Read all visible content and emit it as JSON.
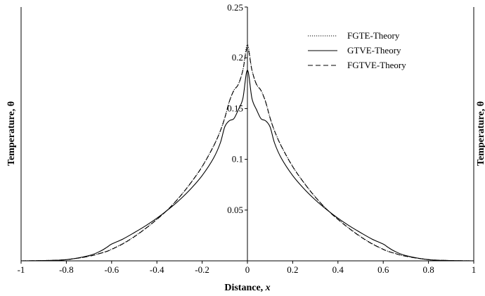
{
  "chart_data": {
    "type": "line",
    "title": "",
    "xlabel_text": "Distance, ",
    "xlabel_var": "x",
    "ylabel_left": "Temperature, θ",
    "ylabel_right": "Temperature, θ",
    "xlim": [
      -1,
      1
    ],
    "ylim": [
      0,
      0.25
    ],
    "x_ticks": [
      "-1",
      "-0.8",
      "-0.6",
      "-0.4",
      "-0.2",
      "0",
      "0.2",
      "0.4",
      "0.6",
      "0.8",
      "1"
    ],
    "y_ticks": [
      "0.05",
      "0.1",
      "0.15",
      "0.2",
      "0.25"
    ],
    "grid": false,
    "legend_position": "top-right",
    "x": [
      -1,
      -0.9,
      -0.8,
      -0.7,
      -0.65,
      -0.62,
      -0.6,
      -0.55,
      -0.5,
      -0.45,
      -0.4,
      -0.35,
      -0.3,
      -0.25,
      -0.2,
      -0.15,
      -0.12,
      -0.1,
      -0.08,
      -0.06,
      -0.04,
      -0.02,
      0,
      0.02,
      0.04,
      0.06,
      0.08,
      0.1,
      0.12,
      0.15,
      0.2,
      0.25,
      0.3,
      0.35,
      0.4,
      0.45,
      0.5,
      0.55,
      0.6,
      0.62,
      0.65,
      0.7,
      0.8,
      0.9,
      1
    ],
    "series": [
      {
        "name": "FGTE-Theory",
        "dash": "1.2,1.8",
        "values": [
          0,
          0.0003,
          0.0012,
          0.0045,
          0.0075,
          0.0095,
          0.0115,
          0.017,
          0.024,
          0.032,
          0.041,
          0.051,
          0.063,
          0.077,
          0.093,
          0.113,
          0.128,
          0.141,
          0.157,
          0.168,
          0.174,
          0.188,
          0.213,
          0.188,
          0.174,
          0.168,
          0.157,
          0.141,
          0.128,
          0.113,
          0.093,
          0.077,
          0.063,
          0.051,
          0.041,
          0.032,
          0.024,
          0.017,
          0.0115,
          0.0095,
          0.0075,
          0.0045,
          0.0012,
          0.0003,
          0
        ]
      },
      {
        "name": "GTVE-Theory",
        "dash": "",
        "values": [
          0,
          0.0003,
          0.0012,
          0.0052,
          0.0095,
          0.0135,
          0.0165,
          0.0215,
          0.0278,
          0.0345,
          0.042,
          0.0505,
          0.06,
          0.071,
          0.084,
          0.101,
          0.116,
          0.132,
          0.138,
          0.14,
          0.149,
          0.16,
          0.188,
          0.16,
          0.149,
          0.14,
          0.138,
          0.132,
          0.116,
          0.101,
          0.084,
          0.071,
          0.06,
          0.0505,
          0.042,
          0.0345,
          0.0278,
          0.0215,
          0.0165,
          0.0135,
          0.0095,
          0.0052,
          0.0012,
          0.0003,
          0
        ]
      },
      {
        "name": "FGTVE-Theory",
        "dash": "7,4",
        "values": [
          0,
          0.0003,
          0.0012,
          0.0045,
          0.0074,
          0.0094,
          0.0113,
          0.0168,
          0.0237,
          0.0318,
          0.0408,
          0.0508,
          0.0628,
          0.0768,
          0.0928,
          0.1128,
          0.1278,
          0.1408,
          0.1568,
          0.1678,
          0.1738,
          0.1878,
          0.21,
          0.1878,
          0.1738,
          0.1678,
          0.1568,
          0.1408,
          0.1278,
          0.1128,
          0.0928,
          0.0768,
          0.0628,
          0.0508,
          0.0408,
          0.0318,
          0.0237,
          0.0168,
          0.0113,
          0.0094,
          0.0074,
          0.0045,
          0.0012,
          0.0003,
          0
        ]
      }
    ]
  }
}
